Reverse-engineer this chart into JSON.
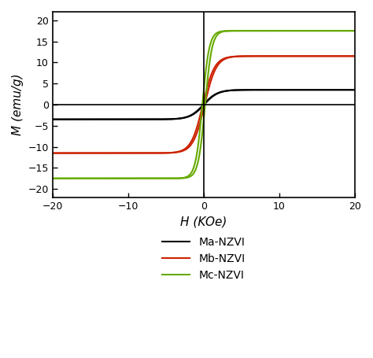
{
  "title": "",
  "xlabel": "H (KOe)",
  "ylabel": "M (emu/g)",
  "xlim": [
    -20,
    20
  ],
  "ylim": [
    -22,
    22
  ],
  "xticks": [
    -20,
    -10,
    0,
    10,
    20
  ],
  "yticks": [
    -20,
    -15,
    -10,
    -5,
    0,
    5,
    10,
    15,
    20
  ],
  "series": [
    {
      "label": "Ma-NZVI",
      "color": "#000000",
      "Ms": 3.5,
      "Hc": 0.05,
      "k": 0.55
    },
    {
      "label": "Mb-NZVI",
      "color": "#cc2200",
      "Ms": 11.5,
      "Hc": 0.12,
      "k": 0.65
    },
    {
      "label": "Mc-NZVI",
      "color": "#66aa00",
      "Ms": 17.5,
      "Hc": 0.18,
      "k": 1.1
    }
  ],
  "vline_color": "#000000",
  "hline_color": "#000000",
  "background_color": "#ffffff",
  "axis_linewidth": 1.2,
  "line_linewidth": 1.5,
  "legend_fontsize": 10,
  "tick_labelsize": 9,
  "xlabel_fontsize": 11,
  "ylabel_fontsize": 11,
  "figsize": [
    4.74,
    4.55
  ],
  "dpi": 100
}
